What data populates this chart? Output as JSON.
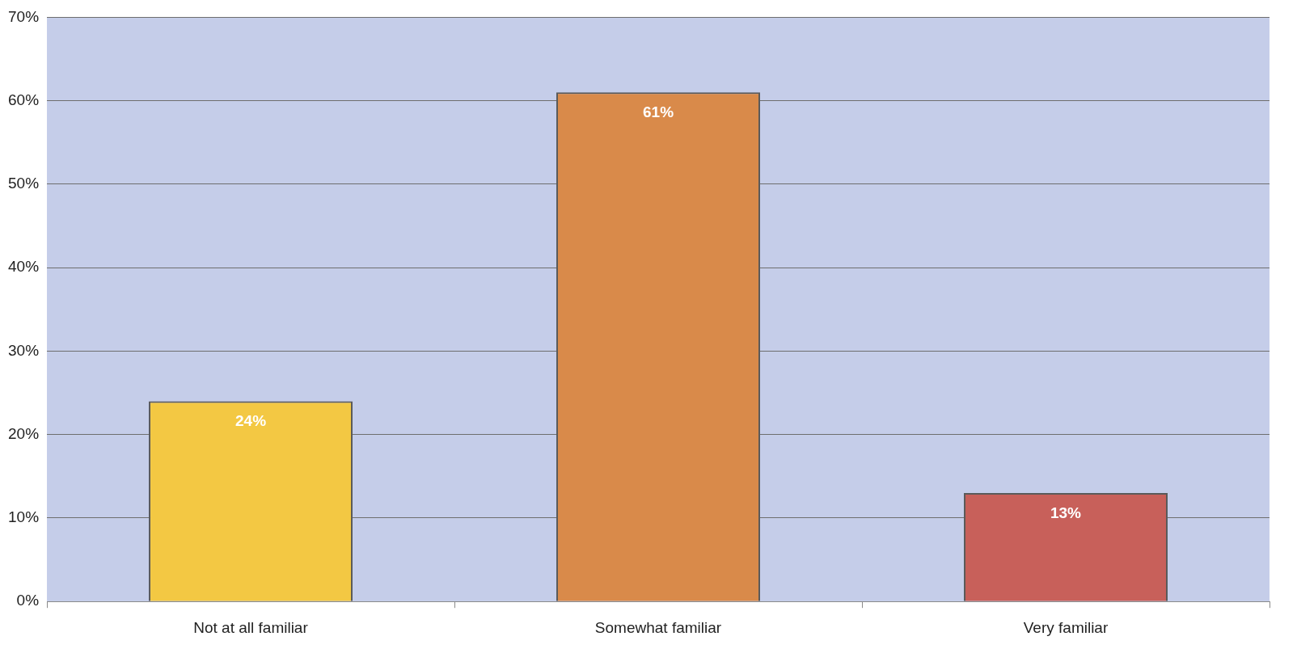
{
  "chart_data": {
    "type": "bar",
    "categories": [
      "Not at all familiar",
      "Somewhat familiar",
      "Very familiar"
    ],
    "values": [
      24,
      61,
      13
    ],
    "colors": [
      "#f3c843",
      "#d98a4a",
      "#c8605a"
    ],
    "value_labels": [
      "24%",
      "61%",
      "13%"
    ],
    "ylim": [
      0,
      70
    ],
    "yticks": [
      {
        "value": 0,
        "label": "0%"
      },
      {
        "value": 10,
        "label": "10%"
      },
      {
        "value": 20,
        "label": "20%"
      },
      {
        "value": 30,
        "label": "30%"
      },
      {
        "value": 40,
        "label": "40%"
      },
      {
        "value": 50,
        "label": "50%"
      },
      {
        "value": 60,
        "label": "60%"
      },
      {
        "value": 70,
        "label": "70%"
      }
    ],
    "grid": "y",
    "legend": false
  }
}
